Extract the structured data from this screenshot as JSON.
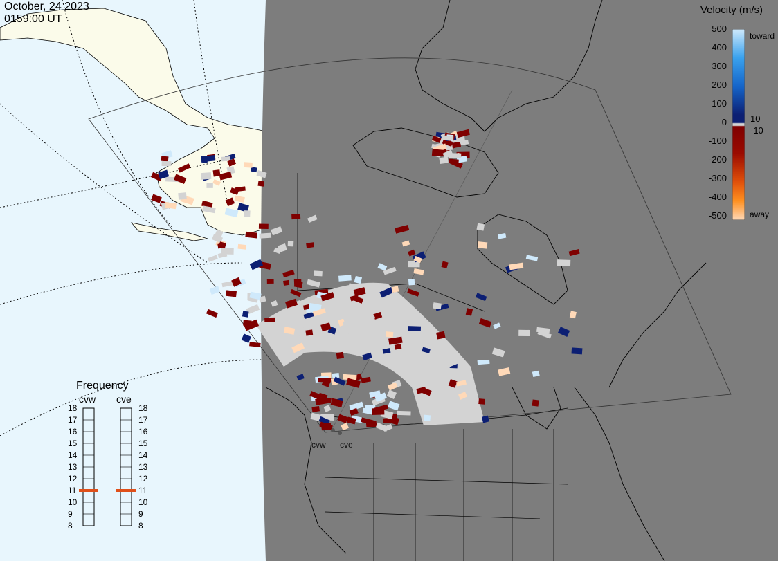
{
  "header": {
    "date": "October, 24 2023",
    "time": "0159:00 UT"
  },
  "colorbar": {
    "title": "Velocity (m/s)",
    "ticks": [
      "500",
      "400",
      "300",
      "200",
      "100",
      "0",
      "-100",
      "-200",
      "-300",
      "-400",
      "-500"
    ],
    "extra_ticks": [
      "10",
      "-10"
    ],
    "toward_label": "toward",
    "away_label": "away",
    "colors": {
      "toward_high": "#cfe9fb",
      "toward_mid": "#1e87e0",
      "toward_low": "#0c1f73",
      "near_zero": "#d3d3d3",
      "away_low": "#7f0000",
      "away_mid": "#d04a00",
      "away_high": "#ffd9b8"
    }
  },
  "frequency": {
    "title": "Frequency",
    "radars": [
      {
        "name": "cvw",
        "selected_mhz": 11
      },
      {
        "name": "cve",
        "selected_mhz": 11
      }
    ],
    "scale": [
      "18",
      "17",
      "16",
      "15",
      "14",
      "13",
      "12",
      "11",
      "10",
      "9",
      "8"
    ],
    "marker_color": "#e0501a"
  },
  "map": {
    "radar_sites": [
      "cvw",
      "cve"
    ],
    "colors": {
      "ocean": "#e8f6fd",
      "land_daylight": "#fbfbea",
      "night_shade": "#7d7d7d",
      "ground_scatter": "#d3d3d3",
      "outline": "#000000"
    }
  }
}
